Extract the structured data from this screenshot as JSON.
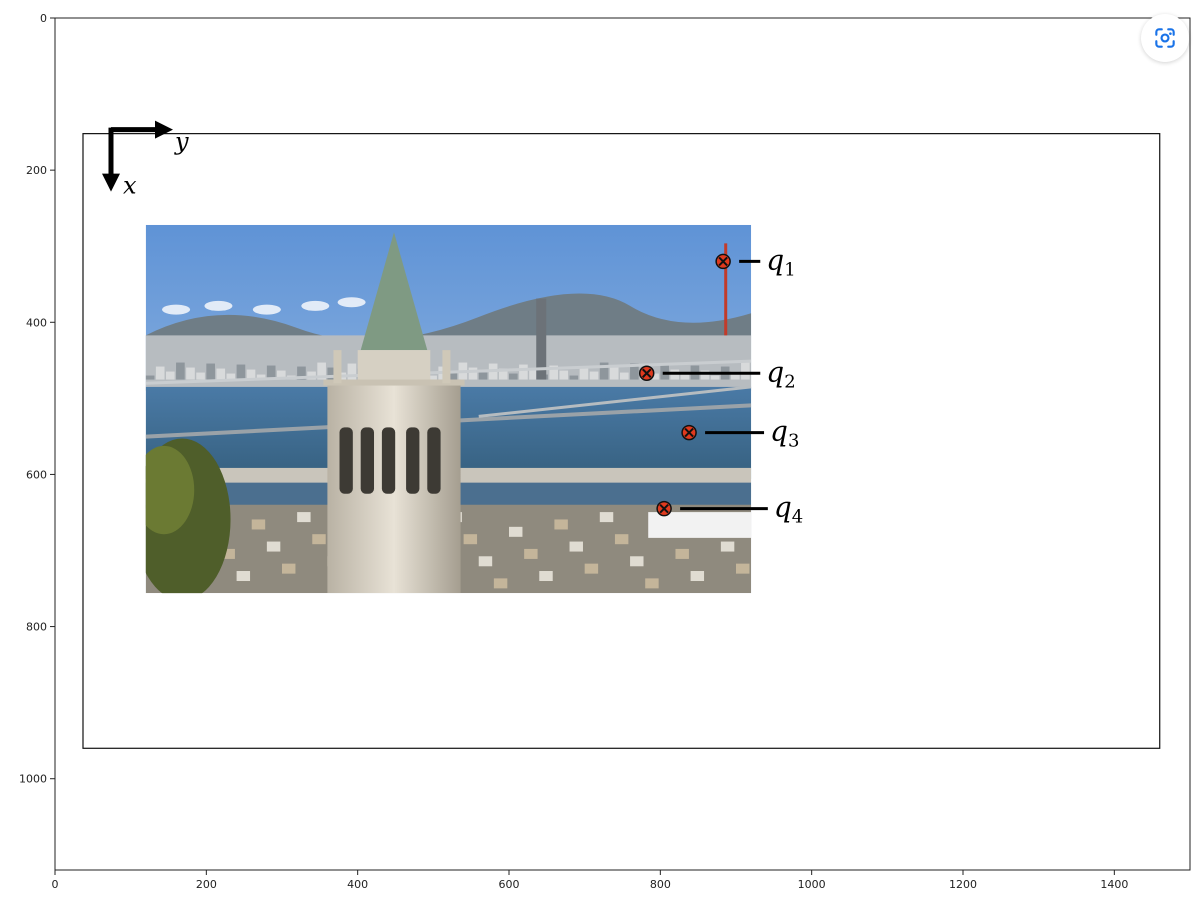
{
  "chart_data": {
    "type": "image",
    "xlim": [
      0,
      1500
    ],
    "ylim": [
      1120,
      0
    ],
    "xticks": [
      0,
      200,
      400,
      600,
      800,
      1000,
      1200,
      1400
    ],
    "yticks": [
      0,
      200,
      400,
      600,
      800,
      1000
    ],
    "canvas_frame": {
      "x0": 37,
      "y0": 152,
      "x1": 1460,
      "y1": 960
    },
    "photo_extent": {
      "x0": 120,
      "y0": 272,
      "x1": 920,
      "y1": 756
    },
    "axes_arrows": {
      "origin": [
        37,
        152
      ],
      "y_label": "y",
      "x_label": "x"
    },
    "points": [
      {
        "name": "q",
        "sub": "1",
        "x": 883,
        "y": 320,
        "label_x": 940,
        "label_y": 320
      },
      {
        "name": "q",
        "sub": "2",
        "x": 782,
        "y": 467,
        "label_x": 940,
        "label_y": 467
      },
      {
        "name": "q",
        "sub": "3",
        "x": 838,
        "y": 545,
        "label_x": 945,
        "label_y": 545
      },
      {
        "name": "q",
        "sub": "4",
        "x": 805,
        "y": 645,
        "label_x": 950,
        "label_y": 645
      }
    ]
  },
  "colors": {
    "marker_fill": "#e03a1e",
    "marker_edge": "#111111",
    "sky": "#6f9fd8",
    "water": "#3c6a94"
  },
  "ui": {
    "lens_icon": "google-lens-icon"
  }
}
